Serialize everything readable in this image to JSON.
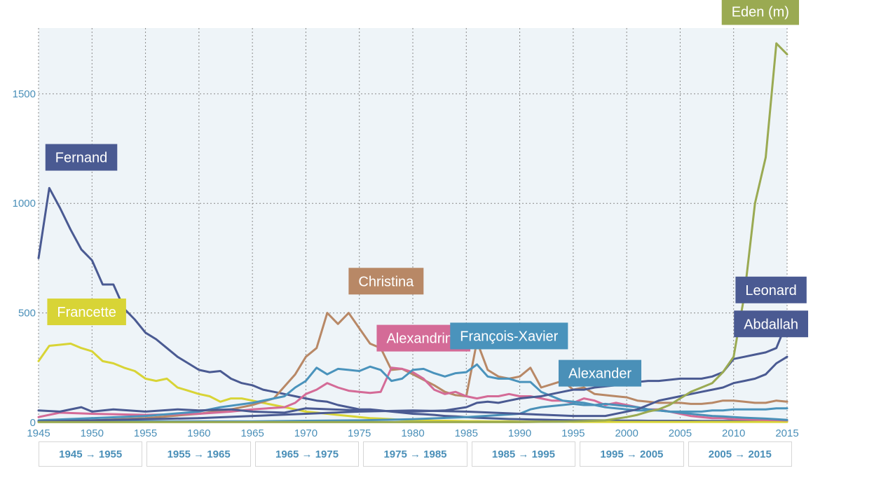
{
  "chart_data": {
    "type": "line",
    "x_range": [
      1945,
      2015
    ],
    "y_range": [
      0,
      1800
    ],
    "x_ticks": [
      1945,
      1950,
      1955,
      1960,
      1965,
      1970,
      1975,
      1980,
      1985,
      1990,
      1995,
      2000,
      2005,
      2010,
      2015
    ],
    "y_ticks": [
      0,
      500,
      1000,
      1500
    ],
    "grid": true,
    "series": [
      {
        "name": "Fernand",
        "color": "#4a5a92",
        "x": [
          1945,
          1946,
          1947,
          1948,
          1949,
          1950,
          1951,
          1952,
          1953,
          1954,
          1955,
          1956,
          1957,
          1958,
          1959,
          1960,
          1961,
          1962,
          1963,
          1964,
          1965,
          1966,
          1967,
          1968,
          1969,
          1970,
          1971,
          1972,
          1973,
          1974,
          1975,
          1976,
          1977,
          1978,
          1979,
          1980,
          1981,
          1982,
          1983,
          1984,
          1985,
          1986,
          1987,
          1988,
          1989,
          1990,
          1991,
          1992,
          1993,
          1994,
          1995,
          1996,
          1997,
          1998,
          1999,
          2000,
          2001,
          2002,
          2003,
          2004,
          2005,
          2006,
          2007,
          2008,
          2009,
          2010,
          2011,
          2012,
          2013,
          2014,
          2015
        ],
        "values": [
          750,
          1070,
          980,
          880,
          790,
          740,
          630,
          630,
          520,
          470,
          410,
          380,
          340,
          300,
          270,
          240,
          230,
          235,
          200,
          180,
          170,
          150,
          140,
          130,
          120,
          110,
          100,
          95,
          80,
          70,
          60,
          60,
          55,
          50,
          45,
          40,
          38,
          35,
          30,
          28,
          25,
          22,
          20,
          18,
          16,
          15,
          14,
          13,
          12,
          11,
          10,
          10,
          10,
          10,
          9,
          9,
          9,
          8,
          8,
          8,
          8,
          8,
          7,
          7,
          7,
          7,
          7,
          7,
          7,
          7,
          7
        ]
      },
      {
        "name": "Francette",
        "color": "#d8d436",
        "x": [
          1945,
          1946,
          1947,
          1948,
          1949,
          1950,
          1951,
          1952,
          1953,
          1954,
          1955,
          1956,
          1957,
          1958,
          1959,
          1960,
          1961,
          1962,
          1963,
          1964,
          1965,
          1966,
          1967,
          1968,
          1969,
          1970,
          1971,
          1972,
          1973,
          1974,
          1975,
          1976,
          1977,
          1978,
          1979,
          1980,
          1981,
          1982,
          1983,
          1984,
          1985,
          1986,
          1987,
          1988,
          1989,
          1990,
          1991,
          1992,
          1993,
          1994,
          1995,
          1996,
          1997,
          1998,
          1999,
          2000,
          2001,
          2002,
          2003,
          2004,
          2005,
          2006,
          2007,
          2008,
          2009,
          2010,
          2011,
          2012,
          2013,
          2014,
          2015
        ],
        "values": [
          280,
          350,
          355,
          360,
          340,
          325,
          280,
          270,
          250,
          235,
          200,
          190,
          200,
          160,
          145,
          130,
          120,
          95,
          110,
          110,
          100,
          90,
          80,
          70,
          60,
          50,
          45,
          40,
          35,
          30,
          25,
          20,
          18,
          15,
          12,
          10,
          10,
          8,
          8,
          7,
          6,
          6,
          5,
          5,
          5,
          4,
          4,
          4,
          4,
          4,
          3,
          3,
          3,
          3,
          3,
          3,
          3,
          3,
          3,
          3,
          3,
          3,
          3,
          3,
          3,
          3,
          3,
          3,
          3,
          3,
          3
        ]
      },
      {
        "name": "Christina",
        "color": "#b88866",
        "x": [
          1945,
          1950,
          1955,
          1960,
          1963,
          1965,
          1967,
          1969,
          1970,
          1971,
          1972,
          1973,
          1974,
          1975,
          1976,
          1977,
          1978,
          1979,
          1980,
          1981,
          1982,
          1983,
          1984,
          1985,
          1986,
          1987,
          1988,
          1989,
          1990,
          1991,
          1992,
          1993,
          1994,
          1995,
          1996,
          1997,
          1998,
          1999,
          2000,
          2001,
          2002,
          2003,
          2004,
          2005,
          2006,
          2007,
          2008,
          2009,
          2010,
          2011,
          2012,
          2013,
          2014,
          2015
        ],
        "values": [
          5,
          10,
          20,
          40,
          60,
          80,
          110,
          220,
          300,
          340,
          500,
          450,
          500,
          430,
          360,
          340,
          240,
          245,
          220,
          195,
          170,
          140,
          125,
          120,
          370,
          240,
          210,
          200,
          210,
          250,
          160,
          175,
          190,
          150,
          160,
          130,
          125,
          120,
          115,
          100,
          95,
          90,
          90,
          90,
          85,
          85,
          90,
          100,
          100,
          95,
          90,
          90,
          100,
          95
        ]
      },
      {
        "name": "Alexandrine",
        "color": "#d46b97",
        "x": [
          1945,
          1947,
          1950,
          1955,
          1960,
          1963,
          1965,
          1968,
          1969,
          1970,
          1971,
          1972,
          1973,
          1974,
          1975,
          1976,
          1977,
          1978,
          1979,
          1980,
          1981,
          1982,
          1983,
          1984,
          1985,
          1986,
          1987,
          1988,
          1989,
          1990,
          1991,
          1992,
          1993,
          1994,
          1995,
          1996,
          1997,
          1998,
          1999,
          2000,
          2001,
          2002,
          2003,
          2004,
          2005,
          2006,
          2007,
          2008,
          2009,
          2010,
          2015
        ],
        "values": [
          25,
          45,
          40,
          35,
          40,
          50,
          60,
          70,
          90,
          130,
          150,
          180,
          160,
          145,
          140,
          135,
          140,
          250,
          245,
          230,
          200,
          150,
          130,
          140,
          120,
          110,
          120,
          120,
          130,
          120,
          120,
          110,
          100,
          100,
          90,
          110,
          100,
          80,
          90,
          80,
          70,
          60,
          60,
          50,
          40,
          30,
          25,
          20,
          20,
          15,
          10
        ]
      },
      {
        "name": "François-Xavier",
        "color": "#4a93bc",
        "x": [
          1945,
          1950,
          1955,
          1960,
          1962,
          1965,
          1967,
          1968,
          1969,
          1970,
          1971,
          1972,
          1973,
          1974,
          1975,
          1976,
          1977,
          1978,
          1979,
          1980,
          1981,
          1982,
          1983,
          1984,
          1985,
          1986,
          1987,
          1988,
          1989,
          1990,
          1991,
          1992,
          1993,
          1994,
          1995,
          1996,
          1997,
          1998,
          1999,
          2000,
          2001,
          2002,
          2003,
          2004,
          2005,
          2006,
          2007,
          2008,
          2009,
          2010,
          2011,
          2012,
          2013,
          2014,
          2015
        ],
        "values": [
          10,
          20,
          30,
          50,
          70,
          90,
          110,
          120,
          160,
          190,
          250,
          220,
          245,
          240,
          235,
          255,
          240,
          190,
          200,
          240,
          245,
          225,
          210,
          225,
          230,
          265,
          210,
          200,
          200,
          185,
          185,
          140,
          120,
          100,
          95,
          90,
          80,
          70,
          65,
          60,
          55,
          55,
          55,
          50,
          50,
          50,
          50,
          55,
          55,
          60,
          60,
          60,
          60,
          65,
          65
        ]
      },
      {
        "name": "Alexander",
        "color": "#4a90b8",
        "x": [
          1945,
          1950,
          1955,
          1960,
          1965,
          1970,
          1975,
          1980,
          1985,
          1990,
          1991,
          1992,
          1993,
          1994,
          1995,
          1996,
          1997,
          1998,
          1999,
          2000,
          2001,
          2002,
          2003,
          2004,
          2005,
          2006,
          2007,
          2008,
          2009,
          2010,
          2011,
          2012,
          2013,
          2014,
          2015
        ],
        "values": [
          5,
          5,
          5,
          5,
          5,
          8,
          10,
          15,
          25,
          40,
          60,
          70,
          75,
          80,
          85,
          80,
          80,
          85,
          80,
          75,
          70,
          60,
          55,
          50,
          45,
          40,
          35,
          30,
          28,
          25,
          22,
          20,
          18,
          15,
          12
        ]
      },
      {
        "name": "Leonard",
        "color": "#4a5a92",
        "x": [
          1945,
          1947,
          1949,
          1950,
          1952,
          1955,
          1958,
          1960,
          1963,
          1965,
          1968,
          1970,
          1975,
          1980,
          1983,
          1985,
          1986,
          1987,
          1988,
          1989,
          1990,
          1991,
          1992,
          1993,
          1994,
          1995,
          1996,
          1997,
          1998,
          1999,
          2000,
          2001,
          2002,
          2003,
          2004,
          2005,
          2006,
          2007,
          2008,
          2009,
          2010,
          2011,
          2012,
          2013,
          2014,
          2015
        ],
        "values": [
          55,
          50,
          70,
          50,
          60,
          50,
          60,
          55,
          60,
          50,
          45,
          65,
          55,
          50,
          55,
          70,
          90,
          95,
          90,
          100,
          110,
          115,
          120,
          130,
          140,
          150,
          150,
          160,
          165,
          170,
          175,
          185,
          190,
          190,
          195,
          200,
          200,
          200,
          210,
          230,
          290,
          300,
          310,
          320,
          340,
          460
        ]
      },
      {
        "name": "Abdallah",
        "color": "#4a5a92",
        "x": [
          1945,
          1950,
          1955,
          1960,
          1965,
          1970,
          1975,
          1980,
          1985,
          1990,
          1995,
          1998,
          2000,
          2001,
          2002,
          2003,
          2004,
          2005,
          2006,
          2007,
          2008,
          2009,
          2010,
          2011,
          2012,
          2013,
          2014,
          2015
        ],
        "values": [
          5,
          10,
          15,
          20,
          30,
          40,
          50,
          55,
          50,
          40,
          30,
          30,
          50,
          60,
          80,
          100,
          110,
          120,
          130,
          140,
          150,
          160,
          180,
          190,
          200,
          220,
          270,
          300
        ]
      },
      {
        "name": "Eden (m)",
        "color": "#9aaa52",
        "x": [
          1945,
          1950,
          1955,
          1960,
          1965,
          1970,
          1975,
          1980,
          1985,
          1990,
          1995,
          1998,
          2000,
          2001,
          2002,
          2003,
          2004,
          2005,
          2006,
          2007,
          2008,
          2009,
          2010,
          2011,
          2012,
          2013,
          2014,
          2015
        ],
        "values": [
          2,
          2,
          2,
          2,
          2,
          2,
          2,
          2,
          2,
          2,
          5,
          10,
          25,
          35,
          50,
          60,
          80,
          110,
          140,
          160,
          180,
          230,
          300,
          580,
          1000,
          1210,
          1730,
          1680
        ]
      }
    ],
    "labels": [
      {
        "text": "Fernand",
        "color": "#4a5a92",
        "x": 1949,
        "y": 1210
      },
      {
        "text": "Francette",
        "color": "#d8d436",
        "x": 1949.5,
        "y": 505
      },
      {
        "text": "Christina",
        "color": "#b88866",
        "x": 1977.5,
        "y": 645
      },
      {
        "text": "Alexandrine",
        "color": "#d46b97",
        "x": 1981,
        "y": 385
      },
      {
        "text": "François-Xavier",
        "color": "#4a93bc",
        "x": 1989,
        "y": 395
      },
      {
        "text": "Alexander",
        "color": "#4a90b8",
        "x": 1997.5,
        "y": 225
      },
      {
        "text": "Leonard",
        "color": "#4a5a92",
        "x": 2013.5,
        "y": 605
      },
      {
        "text": "Abdallah",
        "color": "#4a5a92",
        "x": 2013.5,
        "y": 450
      },
      {
        "text": "Eden (m)",
        "color": "#9aaa52",
        "x": 2012.5,
        "y": 1875
      }
    ]
  },
  "range_buttons": [
    {
      "label": "1945 → 1955"
    },
    {
      "label": "1955 → 1965"
    },
    {
      "label": "1965 → 1975"
    },
    {
      "label": "1975 → 1985"
    },
    {
      "label": "1985 → 1995"
    },
    {
      "label": "1995 → 2005"
    },
    {
      "label": "2005 → 2015"
    }
  ]
}
